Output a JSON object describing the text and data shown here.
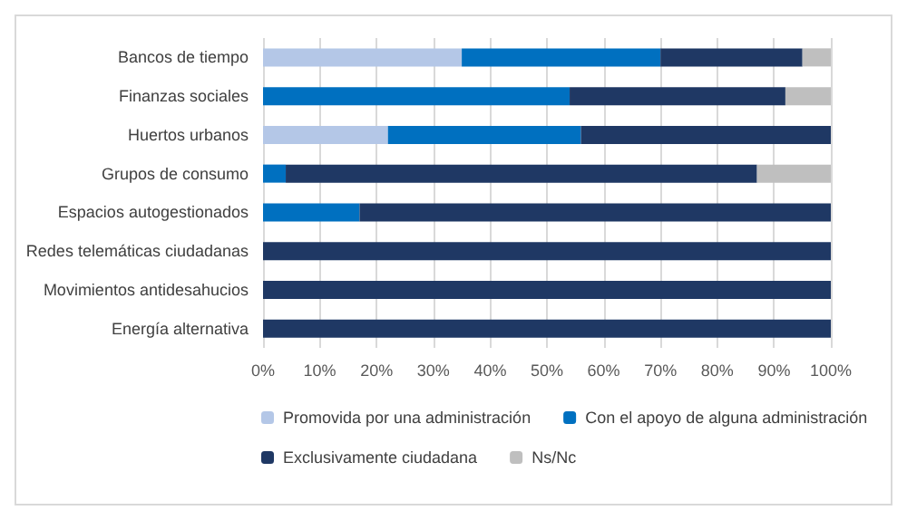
{
  "chart_data": {
    "type": "bar",
    "orientation": "horizontal",
    "stacked": true,
    "categories": [
      "Bancos de tiempo",
      "Finanzas sociales",
      "Huertos urbanos",
      "Grupos de consumo",
      "Espacios autogestionados",
      "Redes telemáticas ciudadanas",
      "Movimientos antidesahucios",
      "Energía alternativa"
    ],
    "series": [
      {
        "name": "Promovida por una administración",
        "color": "#b4c7e7",
        "values": [
          35,
          0,
          22,
          0,
          0,
          0,
          0,
          0
        ]
      },
      {
        "name": "Con el apoyo de alguna administración",
        "color": "#0070c0",
        "values": [
          35,
          54,
          34,
          4,
          17,
          0,
          0,
          0
        ]
      },
      {
        "name": "Exclusivamente ciudadana",
        "color": "#1f3864",
        "values": [
          25,
          38,
          44,
          83,
          83,
          100,
          100,
          100
        ]
      },
      {
        "name": "Ns/Nc",
        "color": "#bfbfbf",
        "values": [
          5,
          8,
          0,
          13,
          0,
          0,
          0,
          0
        ]
      }
    ],
    "xlim": [
      0,
      100
    ],
    "xticks": [
      {
        "value": 0,
        "label": "0%"
      },
      {
        "value": 10,
        "label": "10%"
      },
      {
        "value": 20,
        "label": "20%"
      },
      {
        "value": 30,
        "label": "30%"
      },
      {
        "value": 40,
        "label": "40%"
      },
      {
        "value": 50,
        "label": "50%"
      },
      {
        "value": 60,
        "label": "60%"
      },
      {
        "value": 70,
        "label": "70%"
      },
      {
        "value": 80,
        "label": "80%"
      },
      {
        "value": 90,
        "label": "90%"
      },
      {
        "value": 100,
        "label": "100%"
      }
    ],
    "grid": "x",
    "legend": "bottom"
  }
}
